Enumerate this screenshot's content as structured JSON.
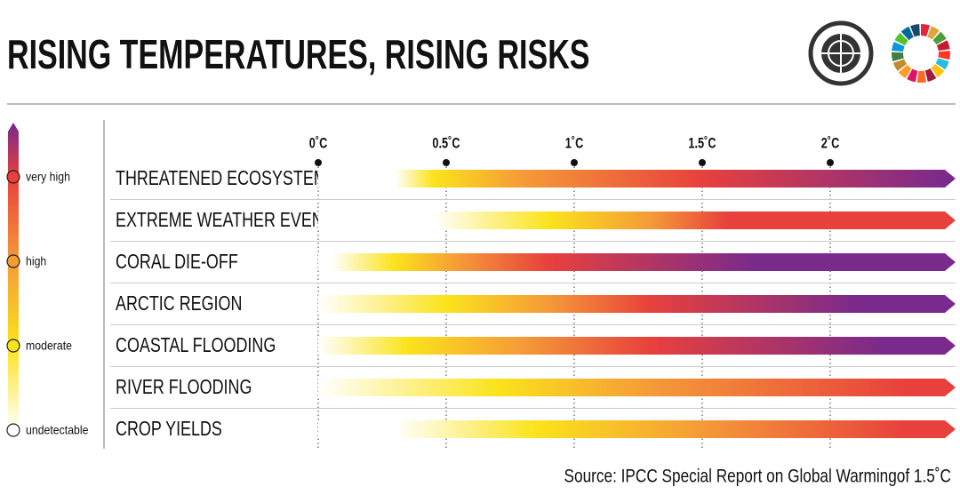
{
  "chart_data": {
    "type": "risk-gradient",
    "title": "RISING TEMPERATURES, RISING RISKS",
    "source": "Source: IPCC Special Report on Global Warmingof 1.5˚C",
    "xlim": [
      0,
      2.5
    ],
    "xticks": [
      {
        "value": 0,
        "label": "0˚C"
      },
      {
        "value": 0.5,
        "label": "0.5˚C"
      },
      {
        "value": 1,
        "label": "1˚C"
      },
      {
        "value": 1.5,
        "label": "1.5˚C"
      },
      {
        "value": 2,
        "label": "2˚C"
      }
    ],
    "level_colors": [
      "#ffffff",
      "#fbe31b",
      "#f59a38",
      "#e8403d",
      "#7a2a8c"
    ],
    "legend": [
      {
        "label": "very high",
        "level": 3
      },
      {
        "label": "high",
        "level": 2
      },
      {
        "label": "moderate",
        "level": 1
      },
      {
        "label": "undetectable",
        "level": 0
      }
    ],
    "rows": [
      {
        "name": "THREATENED ECOSYSTEMS",
        "stops": [
          [
            0.3,
            0
          ],
          [
            0.45,
            1
          ],
          [
            0.8,
            2
          ],
          [
            1.5,
            3
          ],
          [
            2.45,
            4
          ]
        ]
      },
      {
        "name": "EXTREME WEATHER EVENTS",
        "stops": [
          [
            0.45,
            0
          ],
          [
            0.9,
            1
          ],
          [
            1.3,
            2
          ],
          [
            1.6,
            3
          ]
        ]
      },
      {
        "name": "CORAL DIE-OFF",
        "stops": [
          [
            0.05,
            0
          ],
          [
            0.3,
            1
          ],
          [
            0.55,
            2
          ],
          [
            0.9,
            3
          ],
          [
            1.7,
            4
          ]
        ]
      },
      {
        "name": "ARCTIC REGION",
        "stops": [
          [
            0,
            0
          ],
          [
            0.5,
            1
          ],
          [
            0.9,
            2
          ],
          [
            1.3,
            3
          ],
          [
            2.1,
            4
          ]
        ]
      },
      {
        "name": "COASTAL FLOODING",
        "stops": [
          [
            0,
            0
          ],
          [
            0.35,
            1
          ],
          [
            0.8,
            2
          ],
          [
            1.3,
            3
          ],
          [
            2.2,
            4
          ]
        ]
      },
      {
        "name": "RIVER FLOODING",
        "stops": [
          [
            0,
            0
          ],
          [
            0.7,
            1
          ],
          [
            1.3,
            2
          ],
          [
            2.3,
            3
          ]
        ]
      },
      {
        "name": "CROP YIELDS",
        "stops": [
          [
            0.3,
            0
          ],
          [
            0.85,
            1
          ],
          [
            1.5,
            2
          ],
          [
            2.3,
            3
          ]
        ]
      }
    ]
  }
}
